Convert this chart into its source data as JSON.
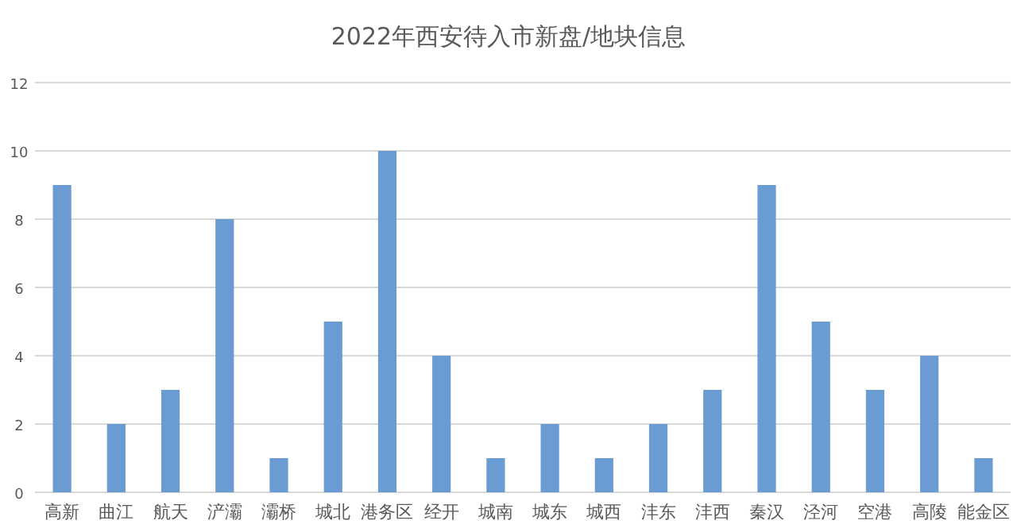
{
  "chart_data": {
    "type": "bar",
    "title": "2022年西安待入市新盘/地块信息",
    "categories": [
      "高新",
      "曲江",
      "航天",
      "浐灞",
      "灞桥",
      "城北",
      "港务区",
      "经开",
      "城南",
      "城东",
      "城西",
      "沣东",
      "沣西",
      "秦汉",
      "泾河",
      "空港",
      "高陵",
      "能金区"
    ],
    "values": [
      9,
      2,
      3,
      8,
      1,
      5,
      10,
      4,
      1,
      2,
      1,
      2,
      3,
      9,
      5,
      3,
      4,
      1
    ],
    "color": "#6a9bd2",
    "ylim": [
      0,
      12
    ],
    "yticks": [
      0,
      2,
      4,
      6,
      8,
      10,
      12
    ],
    "grid": true
  }
}
